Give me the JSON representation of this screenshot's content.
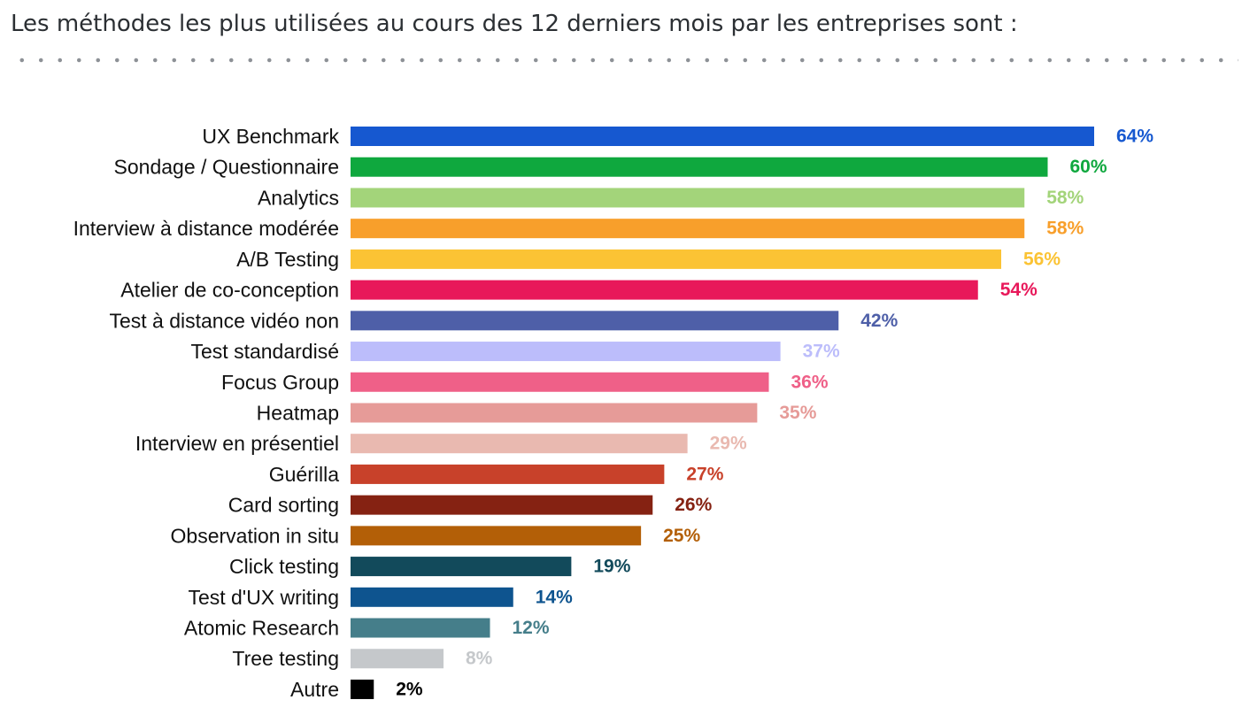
{
  "heading": "Les méthodes les plus utilisées au cours des 12 derniers mois par les entreprises sont :",
  "chart_data": {
    "type": "bar",
    "orientation": "horizontal",
    "title": "",
    "xlabel": "",
    "ylabel": "",
    "grid": false,
    "xlim": [
      0,
      64
    ],
    "categories": [
      "UX Benchmark",
      "Sondage / Questionnaire",
      "Analytics",
      "Interview à distance modérée",
      "A/B Testing",
      "Atelier de co-conception",
      "Test à distance vidéo non",
      "Test standardisé",
      "Focus Group",
      "Heatmap",
      "Interview en présentiel",
      "Guérilla",
      "Card sorting",
      "Observation in situ",
      "Click testing",
      "Test d'UX writing",
      "Atomic Research",
      "Tree testing",
      "Autre"
    ],
    "values": [
      64,
      60,
      58,
      58,
      56,
      54,
      42,
      37,
      36,
      35,
      29,
      27,
      26,
      25,
      19,
      14,
      12,
      8,
      2
    ],
    "value_labels": [
      "64%",
      "60%",
      "58%",
      "58%",
      "56%",
      "54%",
      "42%",
      "37%",
      "36%",
      "35%",
      "29%",
      "27%",
      "26%",
      "25%",
      "19%",
      "14%",
      "12%",
      "8%",
      "2%"
    ],
    "colors": [
      "#1658d0",
      "#0fa83e",
      "#a3d47a",
      "#f89f2b",
      "#fbc334",
      "#e8185a",
      "#4e5fa8",
      "#bcbdfb",
      "#ef6088",
      "#e69b98",
      "#e9b9b0",
      "#c8412a",
      "#852212",
      "#b35f07",
      "#124a5b",
      "#0e548f",
      "#457e8a",
      "#c5c8cb",
      "#000000"
    ]
  }
}
